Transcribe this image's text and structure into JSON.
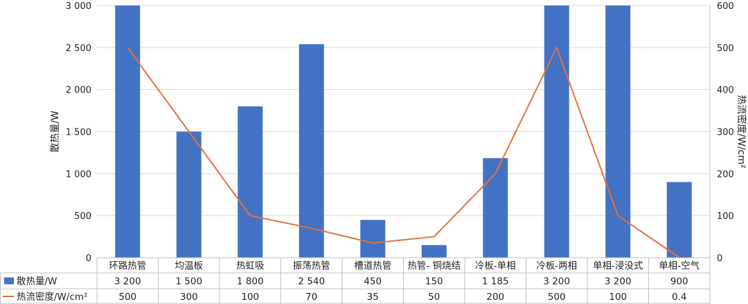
{
  "chart_data": {
    "type": "bar+line",
    "categories": [
      "环路热管",
      "均温板",
      "热虹吸",
      "振荡热管",
      "槽道热管",
      "热管- 铜烧结",
      "冷板-单相",
      "冷板-两相",
      "单相-浸没式",
      "单相-空气"
    ],
    "series": [
      {
        "name": "散热量/W",
        "kind": "bar",
        "axis": "left",
        "values": [
          3200,
          1500,
          1800,
          2540,
          450,
          150,
          1185,
          3200,
          3200,
          900
        ],
        "table_labels": [
          "3 200",
          "1 500",
          "1 800",
          "2 540",
          "450",
          "150",
          "1 185",
          "3 200",
          "3 200",
          "900"
        ],
        "color": "#4472C4"
      },
      {
        "name": "热流密度/W/cm²",
        "kind": "line",
        "axis": "right",
        "values": [
          500,
          300,
          100,
          70,
          35,
          50,
          200,
          500,
          100,
          0.4
        ],
        "table_labels": [
          "500",
          "300",
          "100",
          "70",
          "35",
          "50",
          "200",
          "500",
          "100",
          "0.4"
        ],
        "color": "#E2723A"
      }
    ],
    "ylabel_left": "散热量/W",
    "ylabel_right": "热流密度/W/cm²",
    "ylim_left": [
      0,
      3000
    ],
    "ylim_right": [
      0,
      600
    ],
    "yticks_left": [
      "0",
      "500",
      "1 000",
      "1 500",
      "2 000",
      "2 500",
      "3 000"
    ],
    "yticks_right": [
      "0",
      "100",
      "200",
      "300",
      "400",
      "500",
      "600"
    ],
    "grid": true,
    "legend": "data-table"
  }
}
